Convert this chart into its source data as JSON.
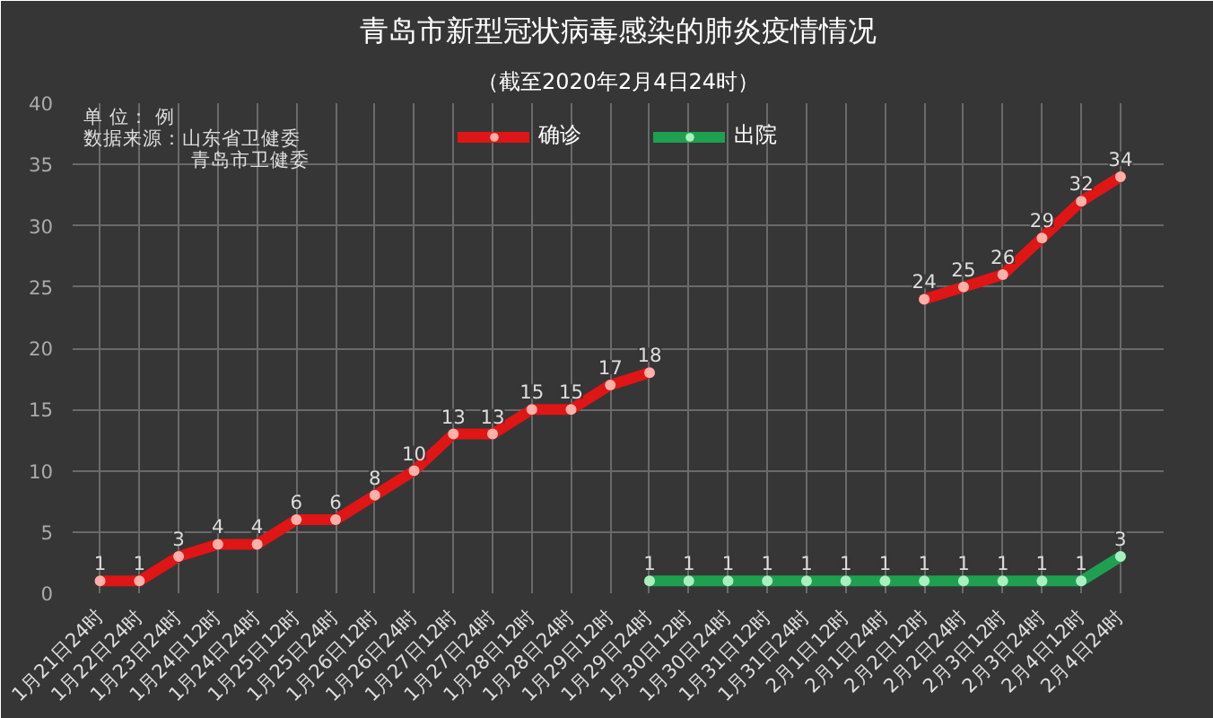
{
  "chart_data": {
    "type": "line",
    "title": "青岛市新型冠状病毒感染的肺炎疫情情况",
    "subtitle": "（截至2020年2月4日24时）",
    "categories": [
      "1月21日24时",
      "1月22日24时",
      "1月23日24时",
      "1月24日12时",
      "1月24日24时",
      "1月25日12时",
      "1月25日24时",
      "1月26日12时",
      "1月26日24时",
      "1月27日12时",
      "1月27日24时",
      "1月28日12时",
      "1月28日24时",
      "1月29日12时",
      "1月29日24时",
      "1月30日12时",
      "1月30日24时",
      "1月31日12时",
      "1月31日24时",
      "2月1日12时",
      "2月1日24时",
      "2月2日12时",
      "2月2日24时",
      "2月3日12时",
      "2月3日24时",
      "2月4日12时",
      "2月4日24时"
    ],
    "series": [
      {
        "name": "确诊",
        "color": "#e01515",
        "values": [
          1,
          1,
          3,
          4,
          4,
          6,
          6,
          8,
          10,
          13,
          13,
          15,
          15,
          17,
          18,
          null,
          null,
          null,
          null,
          null,
          null,
          24,
          25,
          26,
          29,
          32,
          34
        ]
      },
      {
        "name": "出院",
        "color": "#1ea050",
        "values": [
          null,
          null,
          null,
          null,
          null,
          null,
          null,
          null,
          null,
          null,
          null,
          null,
          null,
          null,
          1,
          1,
          1,
          1,
          1,
          1,
          1,
          1,
          1,
          1,
          1,
          1,
          3
        ]
      }
    ],
    "ylim": [
      0,
      40
    ],
    "yticks": [
      0,
      5,
      10,
      15,
      20,
      25,
      30,
      35,
      40
    ],
    "annotations": [
      "单    位：   例",
      "数据来源：山东省卫健委",
      "青岛市卫健委"
    ],
    "grid": true,
    "legend": "top",
    "marker": "circle",
    "line_style": "solid",
    "data_labels": true
  }
}
